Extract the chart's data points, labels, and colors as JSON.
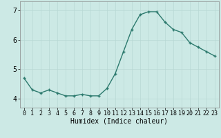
{
  "x": [
    0,
    1,
    2,
    3,
    4,
    5,
    6,
    7,
    8,
    9,
    10,
    11,
    12,
    13,
    14,
    15,
    16,
    17,
    18,
    19,
    20,
    21,
    22,
    23
  ],
  "y": [
    4.7,
    4.3,
    4.2,
    4.3,
    4.2,
    4.1,
    4.1,
    4.15,
    4.1,
    4.1,
    4.35,
    4.85,
    5.6,
    6.35,
    6.85,
    6.95,
    6.95,
    6.6,
    6.35,
    6.25,
    5.9,
    5.75,
    5.6,
    5.45
  ],
  "xlabel": "Humidex (Indice chaleur)",
  "bg_color": "#cce9e5",
  "line_color": "#2d7a6e",
  "grid_color": "#b8d8d4",
  "ylim": [
    3.7,
    7.3
  ],
  "xlim": [
    -0.5,
    23.5
  ],
  "yticks": [
    4,
    5,
    6,
    7
  ],
  "ytick_labels": [
    "4",
    "5",
    "6",
    "7"
  ],
  "xticks": [
    0,
    1,
    2,
    3,
    4,
    5,
    6,
    7,
    8,
    9,
    10,
    11,
    12,
    13,
    14,
    15,
    16,
    17,
    18,
    19,
    20,
    21,
    22,
    23
  ],
  "xtick_labels": [
    "0",
    "1",
    "2",
    "3",
    "4",
    "5",
    "6",
    "7",
    "8",
    "9",
    "10",
    "11",
    "12",
    "13",
    "14",
    "15",
    "16",
    "17",
    "18",
    "19",
    "20",
    "21",
    "22",
    "23"
  ],
  "xlabel_fontsize": 7,
  "tick_fontsize": 6,
  "ytick_fontsize": 7
}
